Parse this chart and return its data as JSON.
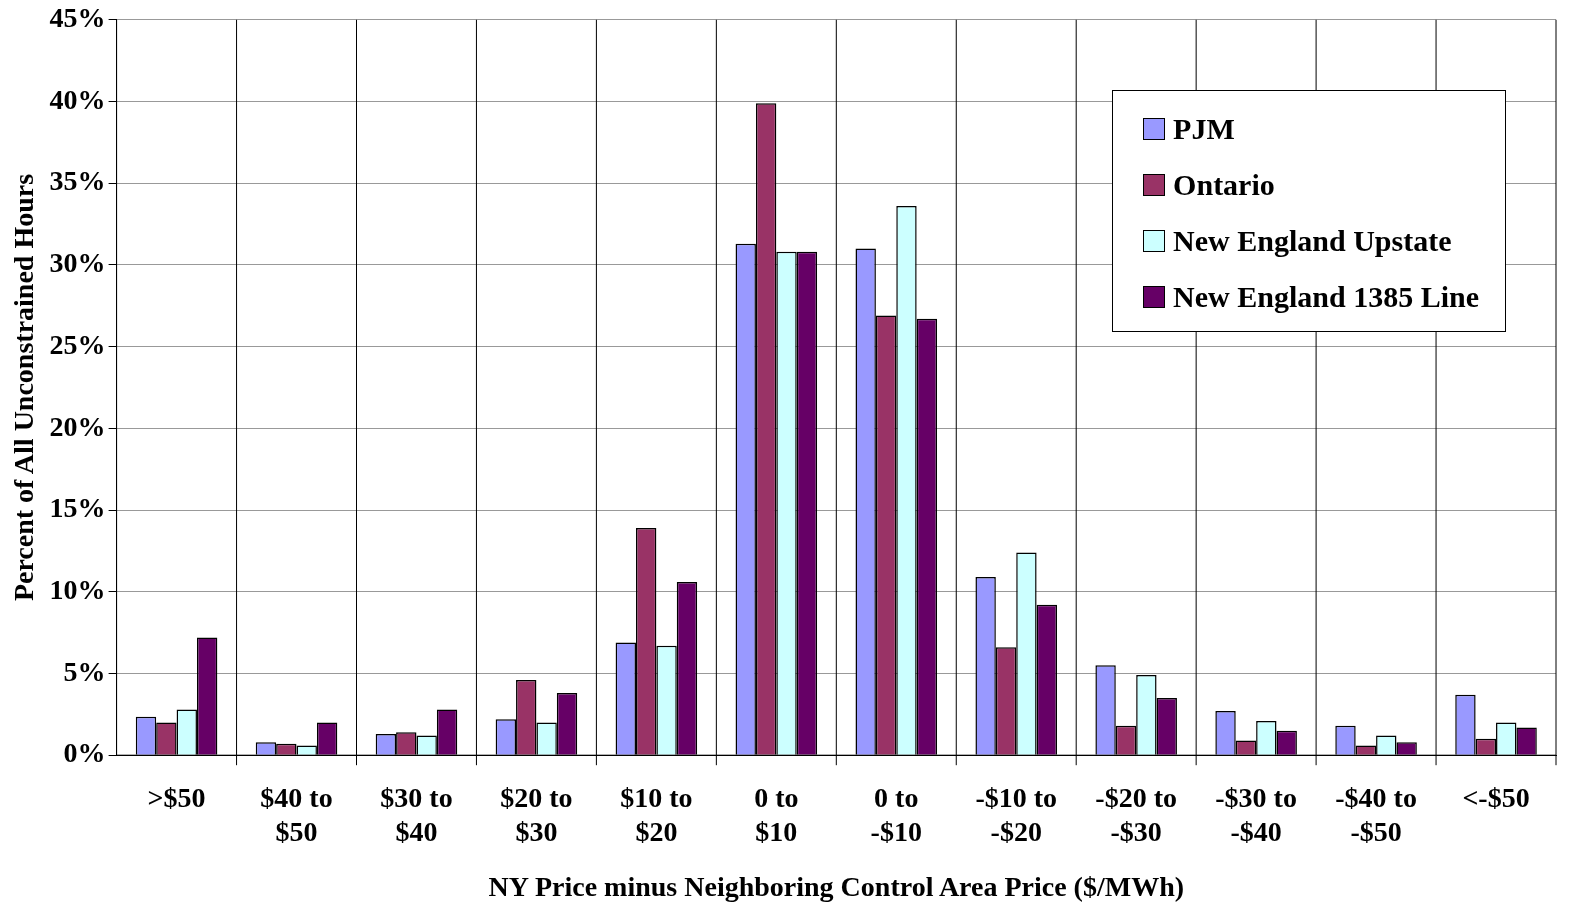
{
  "chart_data": {
    "type": "bar",
    "xlabel": "NY Price minus Neighboring Control Area Price ($/MWh)",
    "ylabel": "Percent of All Unconstrained Hours",
    "categories": [
      ">$50",
      "$40 to $50",
      "$30 to $40",
      "$20 to $30",
      "$10 to $20",
      "0 to $10",
      "0 to -$10",
      "-$10 to -$20",
      "-$20 to -$30",
      "-$30 to -$40",
      "-$40 to -$50",
      "<-$50"
    ],
    "series": [
      {
        "name": "PJM",
        "color": "#9999ff",
        "values": [
          2.35,
          0.8,
          1.3,
          2.2,
          6.9,
          31.3,
          31.0,
          10.9,
          5.5,
          2.7,
          1.8,
          3.7
        ]
      },
      {
        "name": "Ontario",
        "color": "#993366",
        "values": [
          2.0,
          0.7,
          1.4,
          4.6,
          13.9,
          39.9,
          26.9,
          6.6,
          1.8,
          0.9,
          0.6,
          1.0
        ]
      },
      {
        "name": "New England Upstate",
        "color": "#ccffff",
        "values": [
          2.8,
          0.6,
          1.2,
          2.0,
          6.7,
          30.8,
          33.6,
          12.4,
          4.9,
          2.1,
          1.2,
          2.0
        ]
      },
      {
        "name": "New England 1385 Line",
        "color": "#660066",
        "values": [
          7.2,
          2.0,
          2.8,
          3.8,
          10.6,
          30.8,
          26.7,
          9.2,
          3.5,
          1.5,
          0.8,
          1.7
        ]
      }
    ],
    "ylim": [
      0,
      45
    ],
    "yticks": [
      {
        "value": 0,
        "label": "0%"
      },
      {
        "value": 5,
        "label": "5%"
      },
      {
        "value": 10,
        "label": "10%"
      },
      {
        "value": 15,
        "label": "15%"
      },
      {
        "value": 20,
        "label": "20%"
      },
      {
        "value": 25,
        "label": "25%"
      },
      {
        "value": 30,
        "label": "30%"
      },
      {
        "value": 35,
        "label": "35%"
      },
      {
        "value": 40,
        "label": "40%"
      },
      {
        "value": 45,
        "label": "45%"
      }
    ],
    "grid": "y",
    "legend": "top right"
  }
}
